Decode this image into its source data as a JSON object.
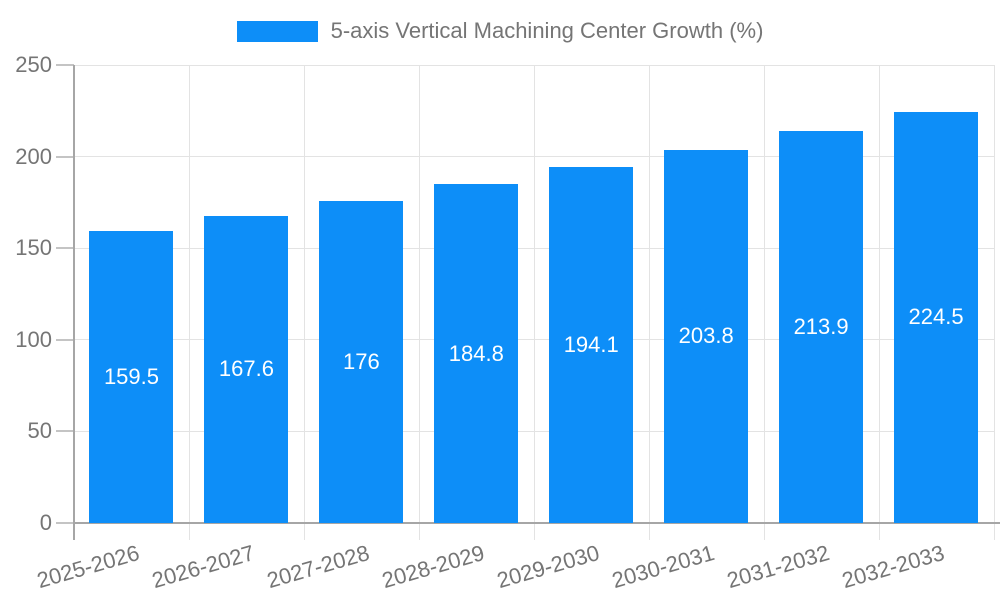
{
  "legend": {
    "label": "5-axis Vertical Machining Center Growth (%)"
  },
  "chart_data": {
    "type": "bar",
    "title": "",
    "xlabel": "",
    "ylabel": "",
    "categories": [
      "2025-2026",
      "2026-2027",
      "2027-2028",
      "2028-2029",
      "2029-2030",
      "2030-2031",
      "2031-2032",
      "2032-2033"
    ],
    "series": [
      {
        "name": "5-axis Vertical Machining Center Growth (%)",
        "values": [
          159.5,
          167.6,
          176,
          184.8,
          194.1,
          203.8,
          213.9,
          224.5
        ]
      }
    ],
    "bar_value_labels": [
      "159.5",
      "167.6",
      "176",
      "184.8",
      "194.1",
      "203.8",
      "213.9",
      "224.5"
    ],
    "ylim": [
      0,
      250
    ],
    "yticks": [
      0,
      50,
      100,
      150,
      200,
      250
    ],
    "grid": true,
    "legend_position": "top",
    "value_labels_inside_bars": true,
    "x_label_rotation_deg": -16,
    "colors": {
      "bar": "#0d8ef8",
      "bar_label": "#ffffff",
      "grid": "#e3e3e3",
      "axis": "#a6a6a6",
      "tick": "#c4c4c4",
      "text": "#757575",
      "background": "#ffffff"
    }
  }
}
